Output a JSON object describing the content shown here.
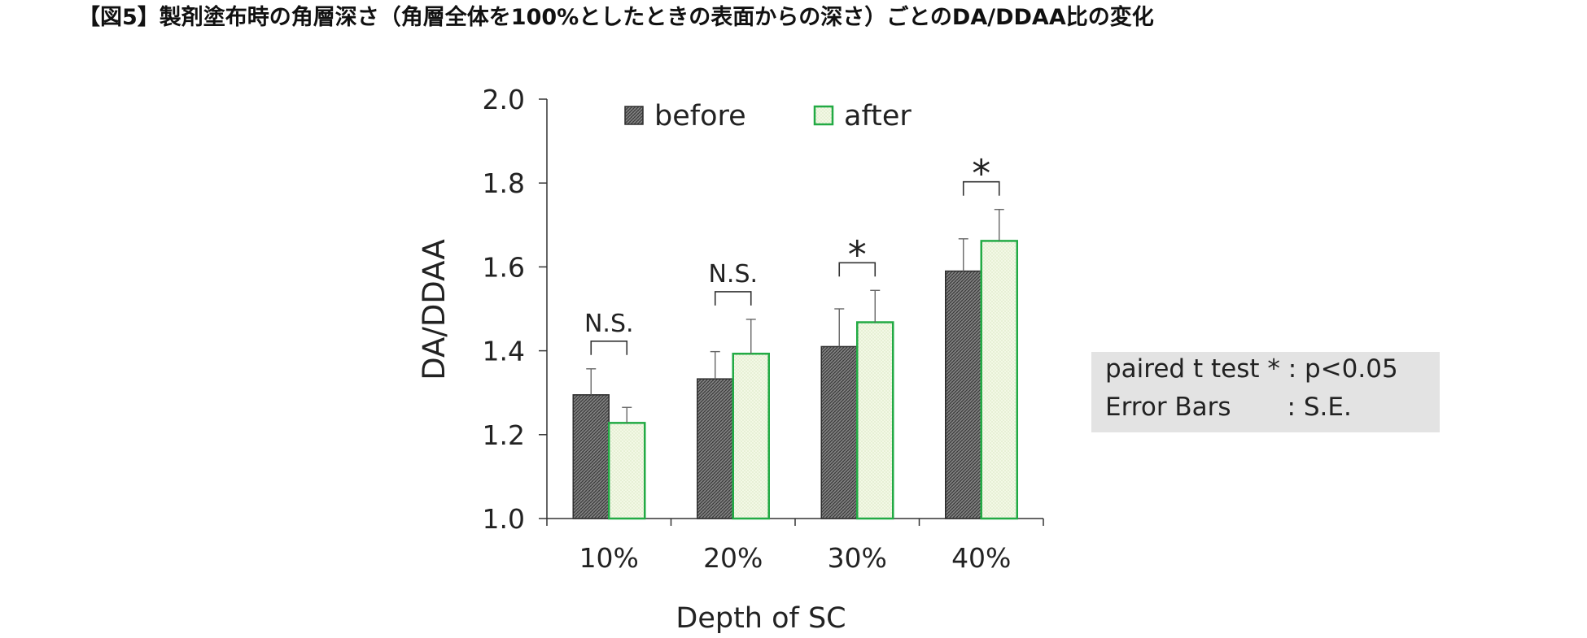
{
  "figure_title": "【図5】製剤塗布時の角層深さ（角層全体を100%としたときの表面からの深さ）ごとのDA/DDAA比の変化",
  "notes": {
    "line1": "paired t test * : p<0.05",
    "line2": "Error Bars       : S.E."
  },
  "colors": {
    "before_fill": "#6b6b6b",
    "after_fill": "#eef6df",
    "after_stroke": "#22aa44",
    "note_bg": "#e3e3e3"
  },
  "chart_data": {
    "type": "bar",
    "title": "",
    "xlabel": "Depth of SC",
    "ylabel": "DA/DDAA",
    "ylim": [
      1.0,
      2.0
    ],
    "yticks": [
      "1.0",
      "1.2",
      "1.4",
      "1.6",
      "1.8",
      "2.0"
    ],
    "categories": [
      "10%",
      "20%",
      "30%",
      "40%"
    ],
    "legend_position": "top",
    "grid": false,
    "series": [
      {
        "name": "before",
        "values": [
          1.295,
          1.333,
          1.41,
          1.59
        ],
        "errors": [
          0.062,
          0.065,
          0.09,
          0.077
        ]
      },
      {
        "name": "after",
        "values": [
          1.228,
          1.393,
          1.468,
          1.662
        ],
        "errors": [
          0.037,
          0.082,
          0.076,
          0.075
        ]
      }
    ],
    "significance": [
      "N.S.",
      "N.S.",
      "*",
      "*"
    ]
  }
}
